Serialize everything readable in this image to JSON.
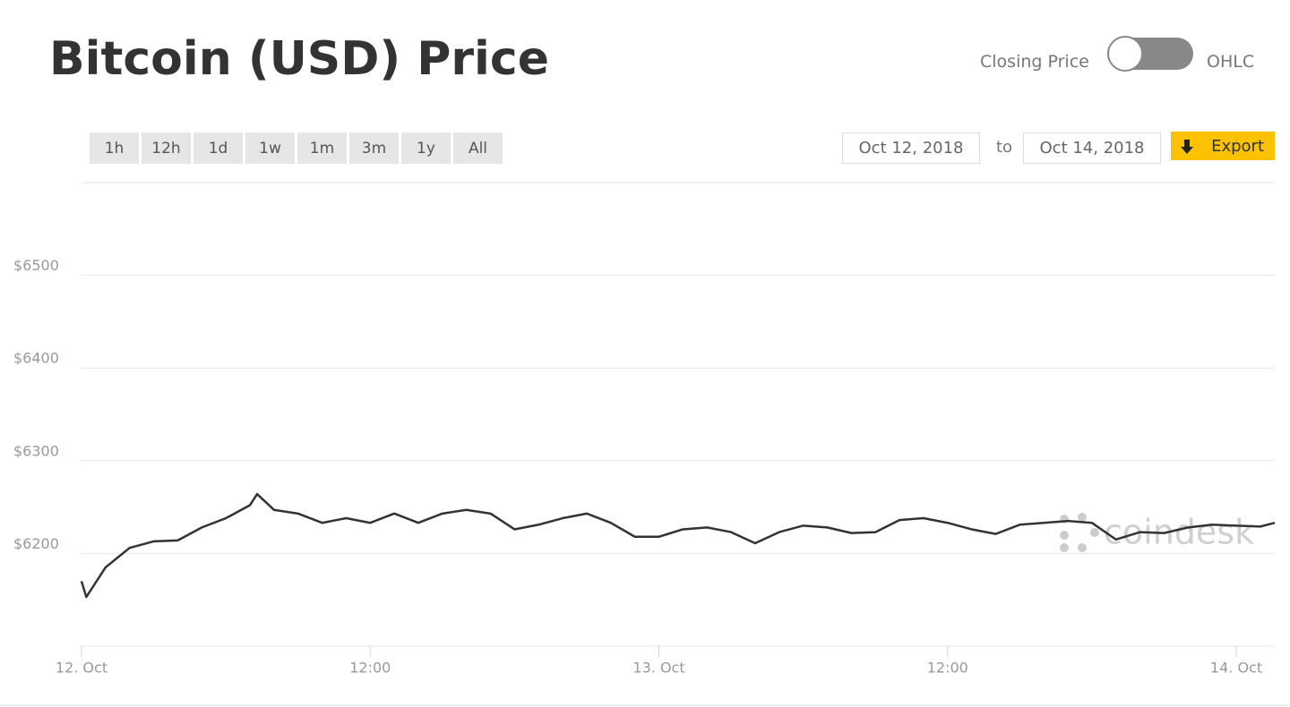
{
  "header": {
    "title": "Bitcoin (USD) Price",
    "toggle_left": "Closing Price",
    "toggle_right": "OHLC"
  },
  "controls": {
    "range_buttons": [
      "1h",
      "12h",
      "1d",
      "1w",
      "1m",
      "3m",
      "1y",
      "All"
    ],
    "date_from": "Oct 12, 2018",
    "date_sep": "to",
    "date_to": "Oct 14, 2018",
    "export": "Export"
  },
  "watermark": "coindesk",
  "chart_data": {
    "type": "line",
    "x": [
      0,
      0.2,
      1,
      2,
      3,
      4,
      5,
      6,
      7,
      7.3,
      8,
      9,
      10,
      11,
      12,
      13,
      14,
      15,
      16,
      17,
      18,
      19,
      20,
      21,
      22,
      23,
      24,
      25,
      26,
      27,
      28,
      29,
      30,
      31,
      32,
      33,
      34,
      35,
      36,
      37,
      38,
      39,
      40,
      41,
      42,
      43,
      44,
      45,
      46,
      47,
      48,
      49,
      49.6
    ],
    "series": [
      {
        "name": "Closing Price",
        "color": "#333333",
        "values": [
          6170,
          6153,
          6185,
          6206,
          6213,
          6214,
          6228,
          6238,
          6252,
          6264,
          6247,
          6243,
          6233,
          6238,
          6233,
          6243,
          6233,
          6243,
          6247,
          6243,
          6226,
          6231,
          6238,
          6243,
          6233,
          6218,
          6218,
          6226,
          6228,
          6223,
          6211,
          6223,
          6230,
          6228,
          6222,
          6223,
          6236,
          6238,
          6233,
          6226,
          6221,
          6231,
          6233,
          6235,
          6233,
          6215,
          6223,
          6222,
          6228,
          6231,
          6230,
          6229,
          6233
        ]
      }
    ],
    "xlim": [
      0,
      49.6
    ],
    "xticks": [
      {
        "value": 0,
        "label": "12. Oct"
      },
      {
        "value": 12,
        "label": "12:00"
      },
      {
        "value": 24,
        "label": "13. Oct"
      },
      {
        "value": 36,
        "label": "12:00"
      },
      {
        "value": 48,
        "label": "14. Oct"
      }
    ],
    "ylim": [
      6100,
      6600
    ],
    "yticks": [
      {
        "value": 6200,
        "label": "$6200"
      },
      {
        "value": 6300,
        "label": "$6300"
      },
      {
        "value": 6400,
        "label": "$6400"
      },
      {
        "value": 6500,
        "label": "$6500"
      }
    ],
    "grid": true
  }
}
